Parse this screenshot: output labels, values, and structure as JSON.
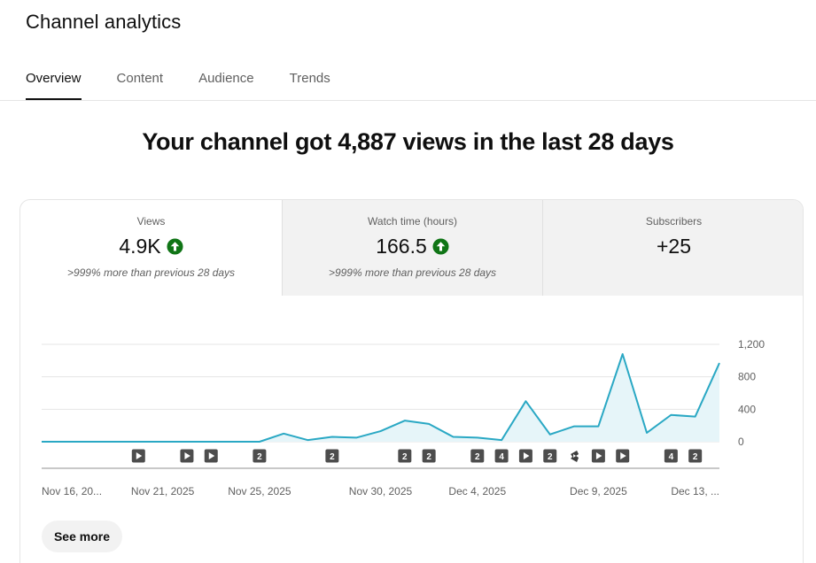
{
  "page": {
    "title": "Channel analytics"
  },
  "tabs": [
    {
      "label": "Overview",
      "active": true
    },
    {
      "label": "Content",
      "active": false
    },
    {
      "label": "Audience",
      "active": false
    },
    {
      "label": "Trends",
      "active": false
    }
  ],
  "headline": "Your channel got 4,887 views in the last 28 days",
  "metrics": [
    {
      "label": "Views",
      "value": "4.9K",
      "trend_icon": "arrow-up-icon",
      "comparison": ">999% more than previous 28 days"
    },
    {
      "label": "Watch time (hours)",
      "value": "166.5",
      "trend_icon": "arrow-up-icon",
      "comparison": ">999% more than previous 28 days"
    },
    {
      "label": "Subscribers",
      "value": "+25"
    }
  ],
  "colors": {
    "line": "#2aa8c4",
    "area": "#e6f5f9",
    "trend_up": "#107516",
    "active_tab_underline": "#0f0f0f"
  },
  "chart_data": {
    "type": "area",
    "title": "",
    "xlabel": "",
    "ylabel": "",
    "ylim": [
      0,
      1200
    ],
    "y_ticks": [
      0,
      400,
      800,
      1200
    ],
    "y_tick_labels": [
      "0",
      "400",
      "800",
      "1,200"
    ],
    "grid": true,
    "x_tick_labels": [
      {
        "index": 0,
        "label": "Nov 16, 20..."
      },
      {
        "index": 5,
        "label": "Nov 21, 2025"
      },
      {
        "index": 9,
        "label": "Nov 25, 2025"
      },
      {
        "index": 14,
        "label": "Nov 30, 2025"
      },
      {
        "index": 18,
        "label": "Dec 4, 2025"
      },
      {
        "index": 23,
        "label": "Dec 9, 2025"
      },
      {
        "index": 27,
        "label": "Dec 13, ..."
      }
    ],
    "series": [
      {
        "values": [
          0,
          0,
          0,
          0,
          0,
          0,
          0,
          0,
          0,
          0,
          100,
          20,
          60,
          50,
          130,
          260,
          220,
          60,
          50,
          20,
          500,
          90,
          190,
          190,
          1080,
          110,
          330,
          310,
          970
        ]
      }
    ],
    "markers": [
      {
        "index": 4,
        "type": "video",
        "icon": "play-icon"
      },
      {
        "index": 6,
        "type": "video",
        "icon": "play-icon"
      },
      {
        "index": 7,
        "type": "video",
        "icon": "play-icon"
      },
      {
        "index": 9,
        "type": "count",
        "label": "2"
      },
      {
        "index": 12,
        "type": "count",
        "label": "2"
      },
      {
        "index": 15,
        "type": "count",
        "label": "2"
      },
      {
        "index": 16,
        "type": "count",
        "label": "2"
      },
      {
        "index": 18,
        "type": "count",
        "label": "2"
      },
      {
        "index": 19,
        "type": "count",
        "label": "4"
      },
      {
        "index": 20,
        "type": "video",
        "icon": "play-icon"
      },
      {
        "index": 21,
        "type": "count",
        "label": "2"
      },
      {
        "index": 22,
        "type": "short",
        "icon": "shorts-icon"
      },
      {
        "index": 23,
        "type": "video",
        "icon": "play-icon"
      },
      {
        "index": 24,
        "type": "video",
        "icon": "play-icon"
      },
      {
        "index": 26,
        "type": "count",
        "label": "4"
      },
      {
        "index": 27,
        "type": "count",
        "label": "2"
      }
    ]
  },
  "see_more_label": "See more"
}
